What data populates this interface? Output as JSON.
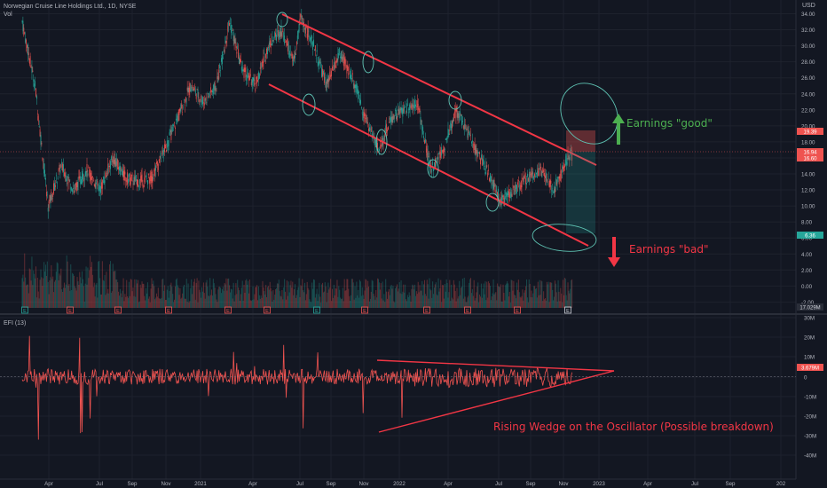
{
  "header": {
    "symbol_label": "Norwegian Cruise Line Holdings Ltd., 1D, NYSE",
    "volume_label": "Vol",
    "currency": "USD"
  },
  "oscillator": {
    "label": "EFI (13)"
  },
  "annotations": {
    "good": "Earnings \"good\"",
    "bad": "Earnings \"bad\"",
    "wedge": "Rising Wedge on the Oscillator (Possible breakdown)"
  },
  "colors": {
    "background": "#131722",
    "up": "#26a69a",
    "down": "#ef5350",
    "trendline": "#f23645",
    "highlight": "#5fc4b4",
    "good_arrow": "#4caf50",
    "bad_arrow": "#f23645"
  },
  "chart_data": [
    {
      "type": "candlestick",
      "title": "Norwegian Cruise Line Holdings Ltd., 1D, NYSE",
      "x_ticks": [
        "Apr",
        "Jul",
        "Sep",
        "Nov",
        "2021",
        "Apr",
        "Jul",
        "Sep",
        "Nov",
        "2022",
        "Apr",
        "Jul",
        "Sep",
        "Nov",
        "2023",
        "Apr",
        "Jul",
        "Sep",
        "202"
      ],
      "y_ticks": [
        "34.00",
        "32.00",
        "30.00",
        "28.00",
        "26.00",
        "24.00",
        "22.00",
        "20.00",
        "18.00",
        "16.00",
        "14.00",
        "12.00",
        "10.00",
        "8.00",
        "6.00",
        "4.00",
        "2.00",
        "0.00",
        "-2.00"
      ],
      "ylim": [
        -2.4,
        34.5
      ],
      "price_path": [
        [
          0,
          33
        ],
        [
          4,
          25
        ],
        [
          8,
          10
        ],
        [
          12,
          15
        ],
        [
          16,
          12
        ],
        [
          20,
          14.5
        ],
        [
          24,
          12
        ],
        [
          28,
          16
        ],
        [
          32,
          13.5
        ],
        [
          36,
          13
        ],
        [
          40,
          13.5
        ],
        [
          44,
          17
        ],
        [
          48,
          21
        ],
        [
          52,
          25
        ],
        [
          56,
          23
        ],
        [
          60,
          25
        ],
        [
          64,
          33
        ],
        [
          68,
          27
        ],
        [
          72,
          25
        ],
        [
          76,
          30
        ],
        [
          80,
          32
        ],
        [
          84,
          28
        ],
        [
          86,
          33.5
        ],
        [
          90,
          30
        ],
        [
          94,
          25
        ],
        [
          98,
          29
        ],
        [
          102,
          26
        ],
        [
          106,
          21
        ],
        [
          110,
          17
        ],
        [
          114,
          21
        ],
        [
          118,
          22
        ],
        [
          122,
          23
        ],
        [
          126,
          14.5
        ],
        [
          130,
          17
        ],
        [
          134,
          22
        ],
        [
          136,
          20.5
        ],
        [
          140,
          17
        ],
        [
          144,
          14
        ],
        [
          148,
          10.5
        ],
        [
          152,
          12
        ],
        [
          156,
          13.5
        ],
        [
          160,
          14.5
        ],
        [
          164,
          12
        ],
        [
          168,
          15.5
        ],
        [
          170,
          16.5
        ]
      ],
      "highlighted_price_levels": [
        {
          "label": "19.39",
          "color": "#ef5350"
        },
        {
          "label": "16.94",
          "color": "#ef5350"
        },
        {
          "label": "16.60",
          "color": "#ef5350"
        },
        {
          "label": "6.36",
          "color": "#26a69a"
        }
      ],
      "volume_label": "17.029M",
      "event_markers": [
        "E",
        "E",
        "E",
        "E",
        "E",
        "E",
        "E",
        "E",
        "E",
        "E",
        "E",
        "E",
        "E"
      ],
      "dividend_markers": [
        "E",
        "E"
      ]
    },
    {
      "type": "line",
      "title": "EFI (13)",
      "y_ticks": [
        "30M",
        "20M",
        "10M",
        "0",
        "-10M",
        "-20M",
        "-30M",
        "-40M"
      ],
      "ylim": [
        -43,
        31
      ],
      "current_value_label": "3.679M"
    }
  ]
}
